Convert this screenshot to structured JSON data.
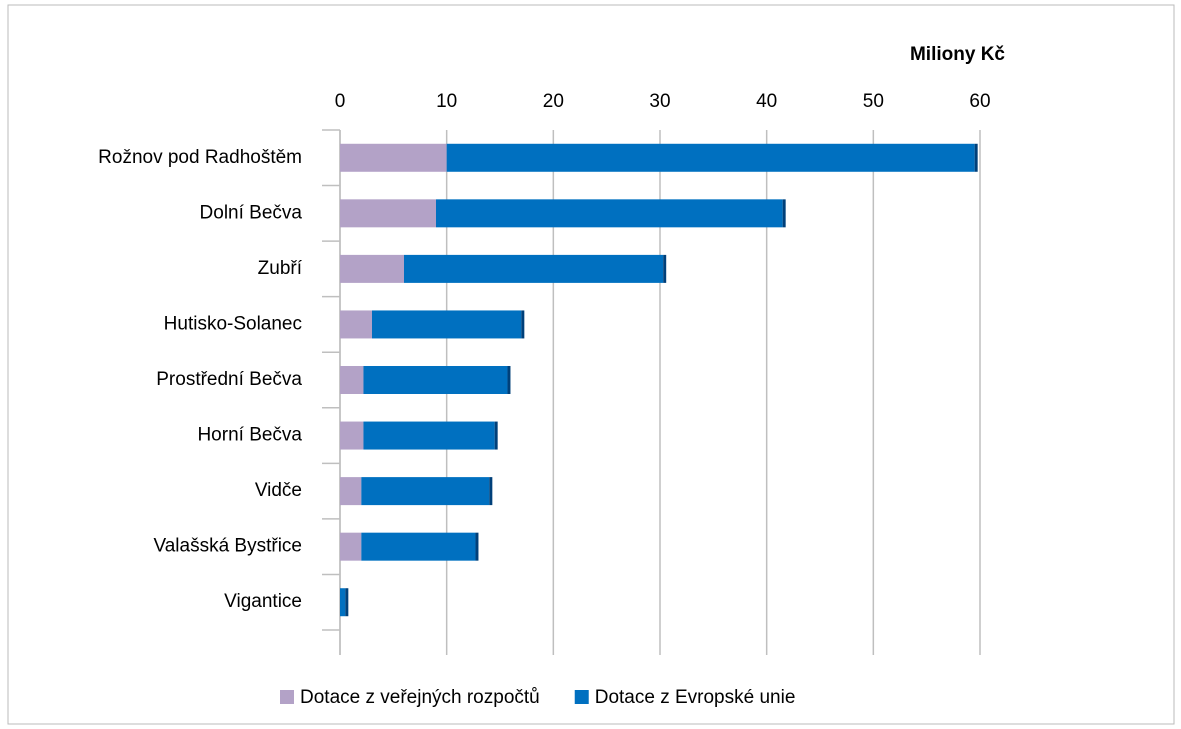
{
  "chart_data": {
    "type": "bar",
    "orientation": "horizontal",
    "stacked": true,
    "x_axis_label": "Miliony Kč",
    "categories": [
      "Rožnov pod Radhoštěm",
      "Dolní Bečva",
      "Zubří",
      "Hutisko-Solanec",
      "Prostřední Bečva",
      "Horní Bečva",
      "Vidče",
      "Valašská Bystřice",
      "Vigantice"
    ],
    "series": [
      {
        "name": "Dotace z veřejných rozpočtů",
        "color": "#b3a2c7",
        "values": [
          10,
          9,
          6,
          3,
          2.2,
          2.2,
          2,
          2,
          0
        ]
      },
      {
        "name": "Dotace z Evropské unie",
        "color": "#0070c0",
        "values": [
          49.5,
          32.5,
          24.3,
          14,
          13.5,
          12.3,
          12,
          10.7,
          0.5
        ]
      }
    ],
    "xlim": [
      0,
      60
    ],
    "xticks": [
      0,
      10,
      20,
      30,
      40,
      50,
      60
    ],
    "grid": true,
    "legend": "bottom"
  }
}
